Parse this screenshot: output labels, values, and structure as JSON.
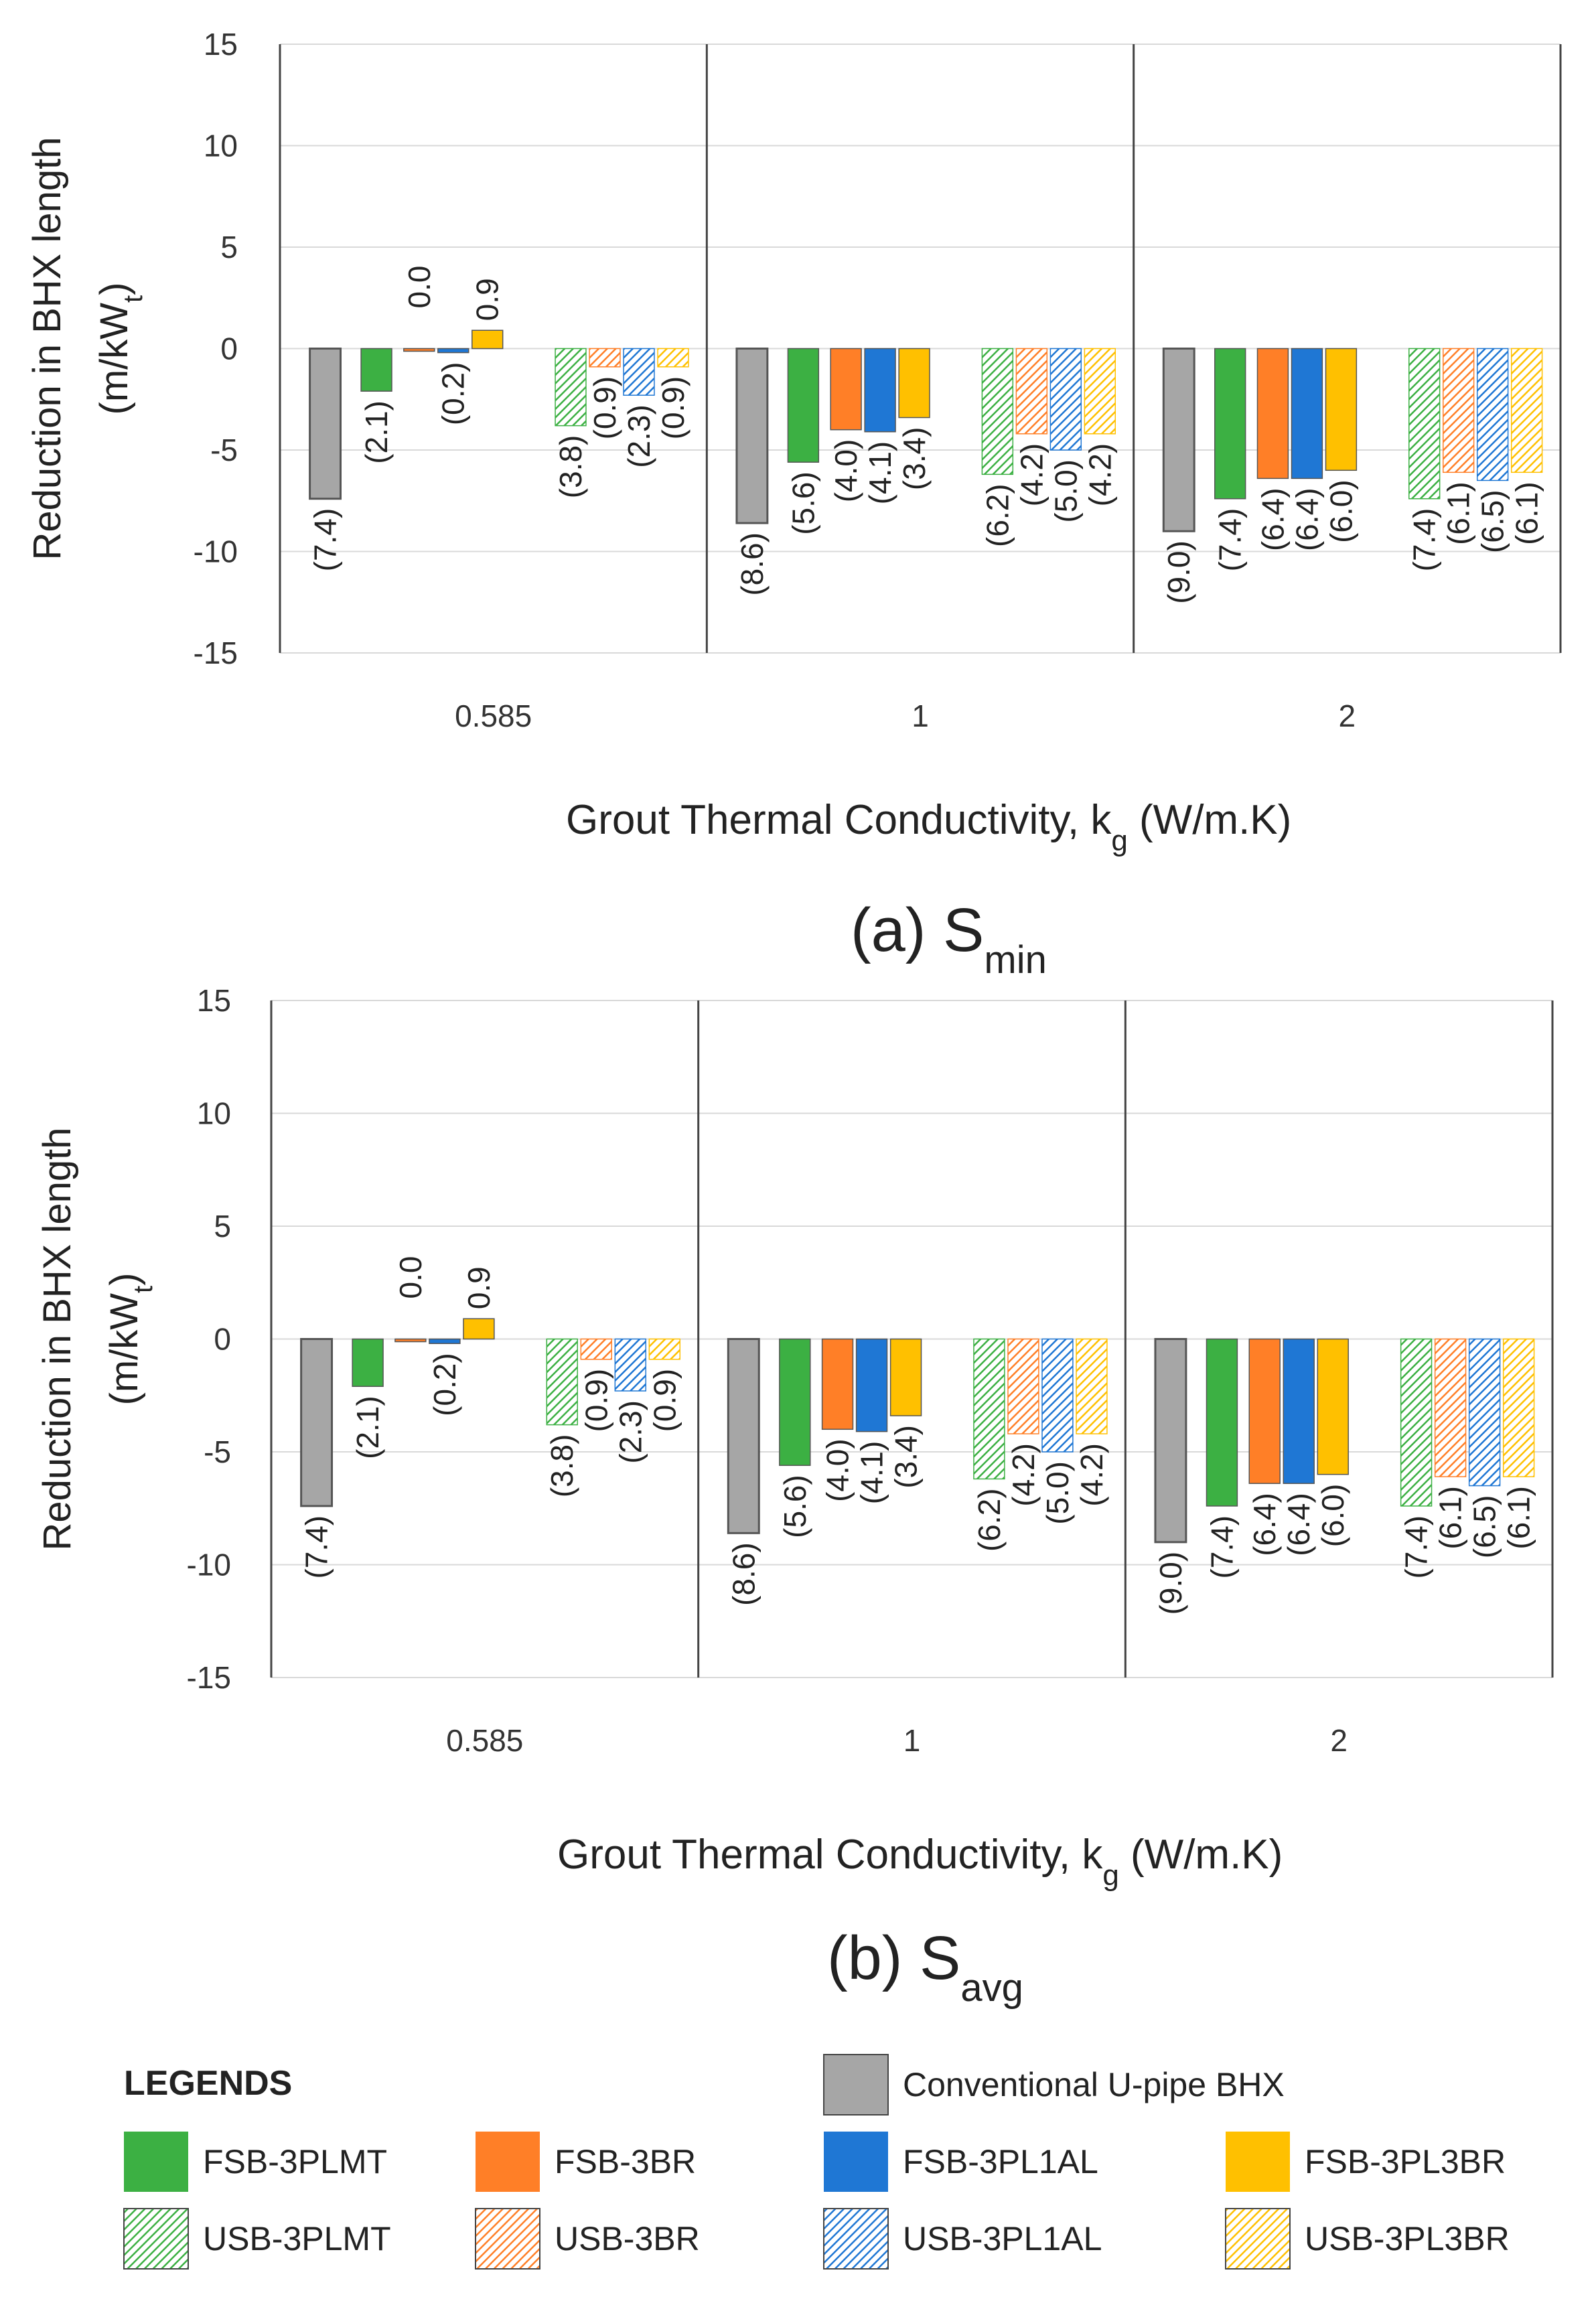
{
  "chart_data": [
    {
      "type": "bar",
      "panel_label": "(a) S",
      "panel_subscript": "min",
      "ylabel_line1": "Reduction in BHX length",
      "ylabel_line2_prefix": "(m/kW",
      "ylabel_line2_sub": "t",
      "ylabel_line2_suffix": ")",
      "xlabel_prefix": "Grout Thermal Conductivity,  k",
      "xlabel_sub": "g",
      "xlabel_suffix": " (W/m.K)",
      "ylim": [
        -15,
        15
      ],
      "yticks": [
        "15",
        "10",
        "5",
        "0",
        "-5",
        "-10",
        "-15"
      ],
      "categories": [
        "0.585",
        "1",
        "2"
      ],
      "series": [
        {
          "name": "Conventional U-pipe BHX",
          "values": [
            -7.4,
            -8.6,
            -9.0
          ],
          "labels": [
            "(7.4)",
            "(8.6)",
            "(9.0)"
          ]
        },
        {
          "name": "FSB-3PLMT",
          "values": [
            -2.1,
            -5.6,
            -7.4
          ],
          "labels": [
            "(2.1)",
            "(5.6)",
            "(7.4)"
          ]
        },
        {
          "name": "FSB-3BR",
          "values": [
            0.0,
            -4.0,
            -6.4
          ],
          "labels": [
            "0.0",
            "(4.0)",
            "(6.4)"
          ]
        },
        {
          "name": "FSB-3PL1AL",
          "values": [
            -0.2,
            -4.1,
            -6.4
          ],
          "labels": [
            "(0.2)",
            "(4.1)",
            "(6.4)"
          ]
        },
        {
          "name": "FSB-3PL3BR",
          "values": [
            0.9,
            -3.4,
            -6.0
          ],
          "labels": [
            "0.9",
            "(3.4)",
            "(6.0)"
          ]
        },
        {
          "name": "USB-3PLMT",
          "values": [
            -3.8,
            -6.2,
            -7.4
          ],
          "labels": [
            "(3.8)",
            "(6.2)",
            "(7.4)"
          ]
        },
        {
          "name": "USB-3BR",
          "values": [
            -0.9,
            -4.2,
            -6.1
          ],
          "labels": [
            "(0.9)",
            "(4.2)",
            "(6.1)"
          ]
        },
        {
          "name": "USB-3PL1AL",
          "values": [
            -2.3,
            -5.0,
            -6.5
          ],
          "labels": [
            "(2.3)",
            "(5.0)",
            "(6.5)"
          ]
        },
        {
          "name": "USB-3PL3BR",
          "values": [
            -0.9,
            -4.2,
            -6.1
          ],
          "labels": [
            "(0.9)",
            "(4.2)",
            "(6.1)"
          ]
        }
      ]
    },
    {
      "type": "bar",
      "panel_label": "(b) S",
      "panel_subscript": "avg",
      "ylabel_line1": "Reduction in BHX length",
      "ylabel_line2_prefix": "(m/kW",
      "ylabel_line2_sub": "t",
      "ylabel_line2_suffix": ")",
      "xlabel_prefix": "Grout Thermal Conductivity,  k",
      "xlabel_sub": "g",
      "xlabel_suffix": " (W/m.K)",
      "ylim": [
        -15,
        15
      ],
      "yticks": [
        "15",
        "10",
        "5",
        "0",
        "-5",
        "-10",
        "-15"
      ],
      "categories": [
        "0.585",
        "1",
        "2"
      ],
      "series": [
        {
          "name": "Conventional U-pipe BHX",
          "values": [
            -7.4,
            -8.6,
            -9.0
          ],
          "labels": [
            "(7.4)",
            "(8.6)",
            "(9.0)"
          ]
        },
        {
          "name": "FSB-3PLMT",
          "values": [
            -2.1,
            -5.6,
            -7.4
          ],
          "labels": [
            "(2.1)",
            "(5.6)",
            "(7.4)"
          ]
        },
        {
          "name": "FSB-3BR",
          "values": [
            0.0,
            -4.0,
            -6.4
          ],
          "labels": [
            "0.0",
            "(4.0)",
            "(6.4)"
          ]
        },
        {
          "name": "FSB-3PL1AL",
          "values": [
            -0.2,
            -4.1,
            -6.4
          ],
          "labels": [
            "(0.2)",
            "(4.1)",
            "(6.4)"
          ]
        },
        {
          "name": "FSB-3PL3BR",
          "values": [
            0.9,
            -3.4,
            -6.0
          ],
          "labels": [
            "0.9",
            "(3.4)",
            "(6.0)"
          ]
        },
        {
          "name": "USB-3PLMT",
          "values": [
            -3.8,
            -6.2,
            -7.4
          ],
          "labels": [
            "(3.8)",
            "(6.2)",
            "(7.4)"
          ]
        },
        {
          "name": "USB-3BR",
          "values": [
            -0.9,
            -4.2,
            -6.1
          ],
          "labels": [
            "(0.9)",
            "(4.2)",
            "(6.1)"
          ]
        },
        {
          "name": "USB-3PL1AL",
          "values": [
            -2.3,
            -5.0,
            -6.5
          ],
          "labels": [
            "(2.3)",
            "(5.0)",
            "(6.5)"
          ]
        },
        {
          "name": "USB-3PL3BR",
          "values": [
            -0.9,
            -4.2,
            -6.1
          ],
          "labels": [
            "(0.9)",
            "(4.2)",
            "(6.1)"
          ]
        }
      ]
    }
  ],
  "legend": {
    "title": "LEGENDS",
    "items": [
      {
        "name": "Conventional U-pipe BHX",
        "color": "#a6a6a6",
        "hatched": false
      },
      {
        "name": "FSB-3PLMT",
        "color": "#3cb043",
        "hatched": false
      },
      {
        "name": "FSB-3BR",
        "color": "#ff7f27",
        "hatched": false
      },
      {
        "name": "FSB-3PL1AL",
        "color": "#1f77d4",
        "hatched": false
      },
      {
        "name": "FSB-3PL3BR",
        "color": "#ffc000",
        "hatched": false
      },
      {
        "name": "USB-3PLMT",
        "color": "#3cb043",
        "hatched": true
      },
      {
        "name": "USB-3BR",
        "color": "#ff7f27",
        "hatched": true
      },
      {
        "name": "USB-3PL1AL",
        "color": "#1f77d4",
        "hatched": true
      },
      {
        "name": "USB-3PL3BR",
        "color": "#ffc000",
        "hatched": true
      }
    ]
  },
  "colors": {
    "grey": "#a6a6a6",
    "green": "#3cb043",
    "orange": "#ff7f27",
    "blue": "#1f77d4",
    "yellow": "#ffc000",
    "axis": "#333333",
    "grid": "#d9d9d9"
  }
}
